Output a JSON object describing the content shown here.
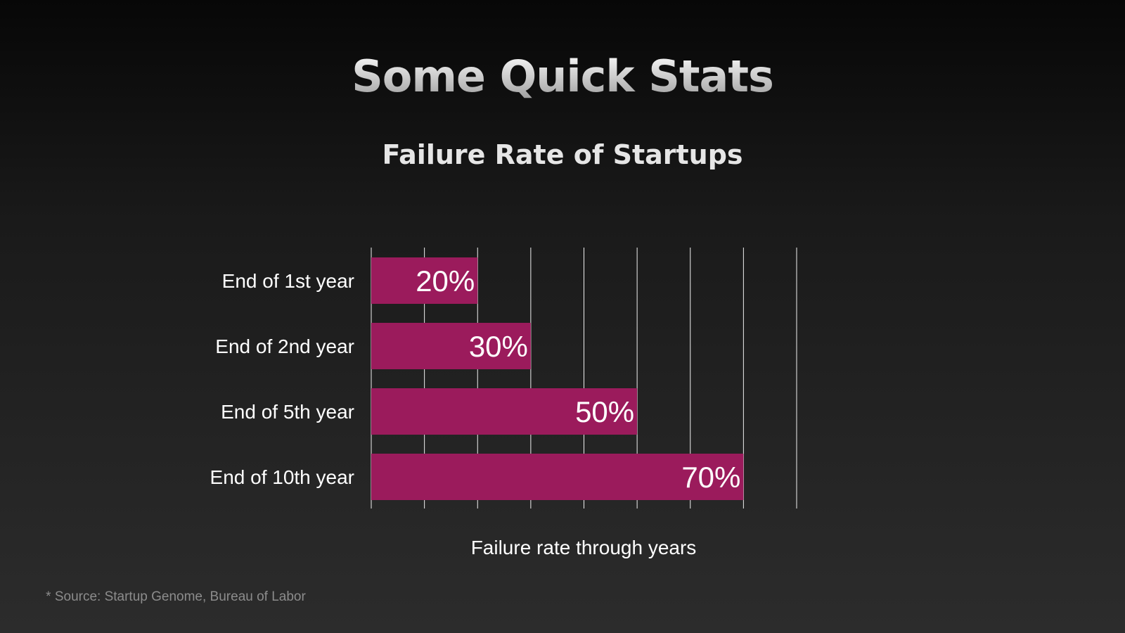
{
  "slide": {
    "title": "Some Quick Stats",
    "footnote": "* Source: Startup Genome, Bureau of Labor"
  },
  "colors": {
    "bar": "#9b1b5c",
    "grid": "#f0f0f0",
    "text": "#ffffff"
  },
  "chart_data": {
    "type": "bar",
    "orientation": "horizontal",
    "title": "Failure Rate of Startups",
    "xlabel": "Failure rate through years",
    "ylabel": "",
    "categories": [
      "End of 1st year",
      "End of 2nd year",
      "End of 5th year",
      "End of 10th year"
    ],
    "values": [
      20,
      30,
      50,
      70
    ],
    "data_labels": [
      "20%",
      "30%",
      "50%",
      "70%"
    ],
    "xlim": [
      0,
      80
    ],
    "x_grid_step": 10,
    "grid": true,
    "legend": "none"
  }
}
